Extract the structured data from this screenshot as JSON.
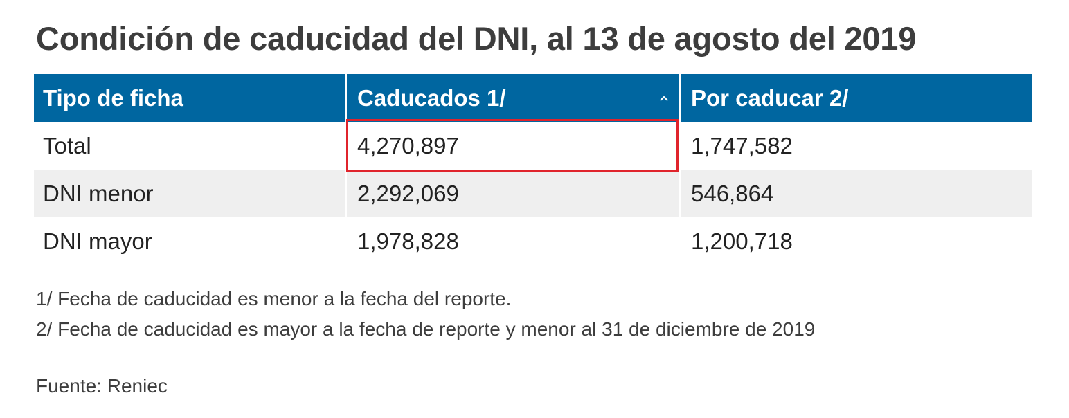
{
  "title": "Condición de caducidad del DNI, al 13 de agosto del 2019",
  "chart_data": {
    "type": "table",
    "title": "Condición de caducidad del DNI, al 13 de agosto del 2019",
    "columns": [
      "Tipo de ficha",
      "Caducados 1/",
      "Por caducar 2/"
    ],
    "sorted_column": "Caducados 1/",
    "rows": [
      {
        "label": "Total",
        "caducados": "4,270,897",
        "por_caducar": "1,747,582"
      },
      {
        "label": "DNI menor",
        "caducados": "2,292,069",
        "por_caducar": "546,864"
      },
      {
        "label": "DNI mayor",
        "caducados": "1,978,828",
        "por_caducar": "1,200,718"
      }
    ],
    "highlighted_cell": "4,270,897"
  },
  "colors": {
    "header_bg": "#0066a0",
    "stripe_bg": "#efefef",
    "highlight_border": "#e0242c"
  },
  "icons": {
    "sort": "chevron-up-icon"
  },
  "notes": [
    "1/ Fecha de caducidad es menor a la fecha del reporte.",
    "2/ Fecha de caducidad es mayor a la fecha de reporte y menor al 31 de diciembre de 2019"
  ],
  "source": "Fuente: Reniec"
}
